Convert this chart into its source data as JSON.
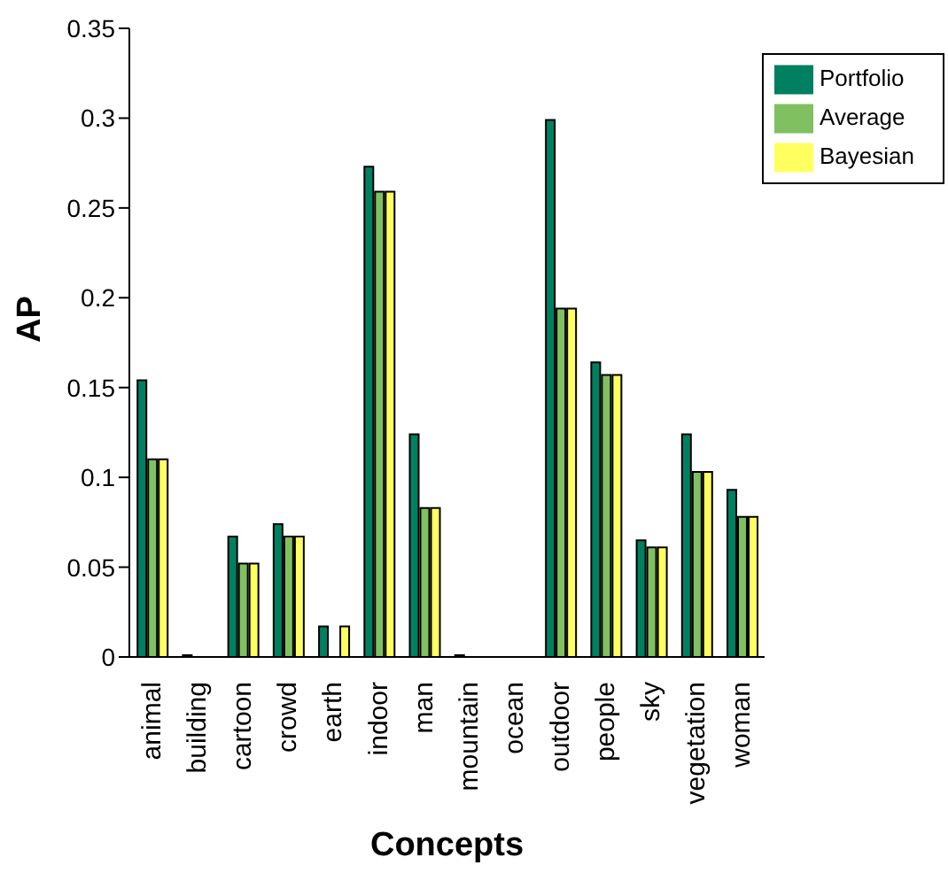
{
  "chart_data": {
    "type": "bar",
    "xlabel": "Concepts",
    "ylabel": "AP",
    "categories": [
      "animal",
      "building",
      "cartoon",
      "crowd",
      "earth",
      "indoor",
      "man",
      "mountain",
      "ocean",
      "outdoor",
      "people",
      "sky",
      "vegetation",
      "woman"
    ],
    "series": [
      {
        "name": "Portfolio",
        "color": "#008060",
        "values": [
          0.154,
          0.001,
          0.067,
          0.074,
          0.017,
          0.273,
          0.124,
          0.001,
          0,
          0.299,
          0.164,
          0.065,
          0.124,
          0.093
        ]
      },
      {
        "name": "Average",
        "color": "#80c060",
        "values": [
          0.11,
          0,
          0.052,
          0.067,
          0,
          0.259,
          0.083,
          0,
          0,
          0.194,
          0.157,
          0.061,
          0.103,
          0.078
        ]
      },
      {
        "name": "Bayesian",
        "color": "#ffff60",
        "values": [
          0.11,
          0,
          0.052,
          0.067,
          0.017,
          0.259,
          0.083,
          0,
          0,
          0.194,
          0.157,
          0.061,
          0.103,
          0.078
        ]
      }
    ],
    "ylim": [
      0,
      0.35
    ],
    "yticks": [
      0,
      0.05,
      0.1,
      0.15,
      0.2,
      0.25,
      0.3,
      0.35
    ],
    "grid": false,
    "legend": "top right"
  }
}
